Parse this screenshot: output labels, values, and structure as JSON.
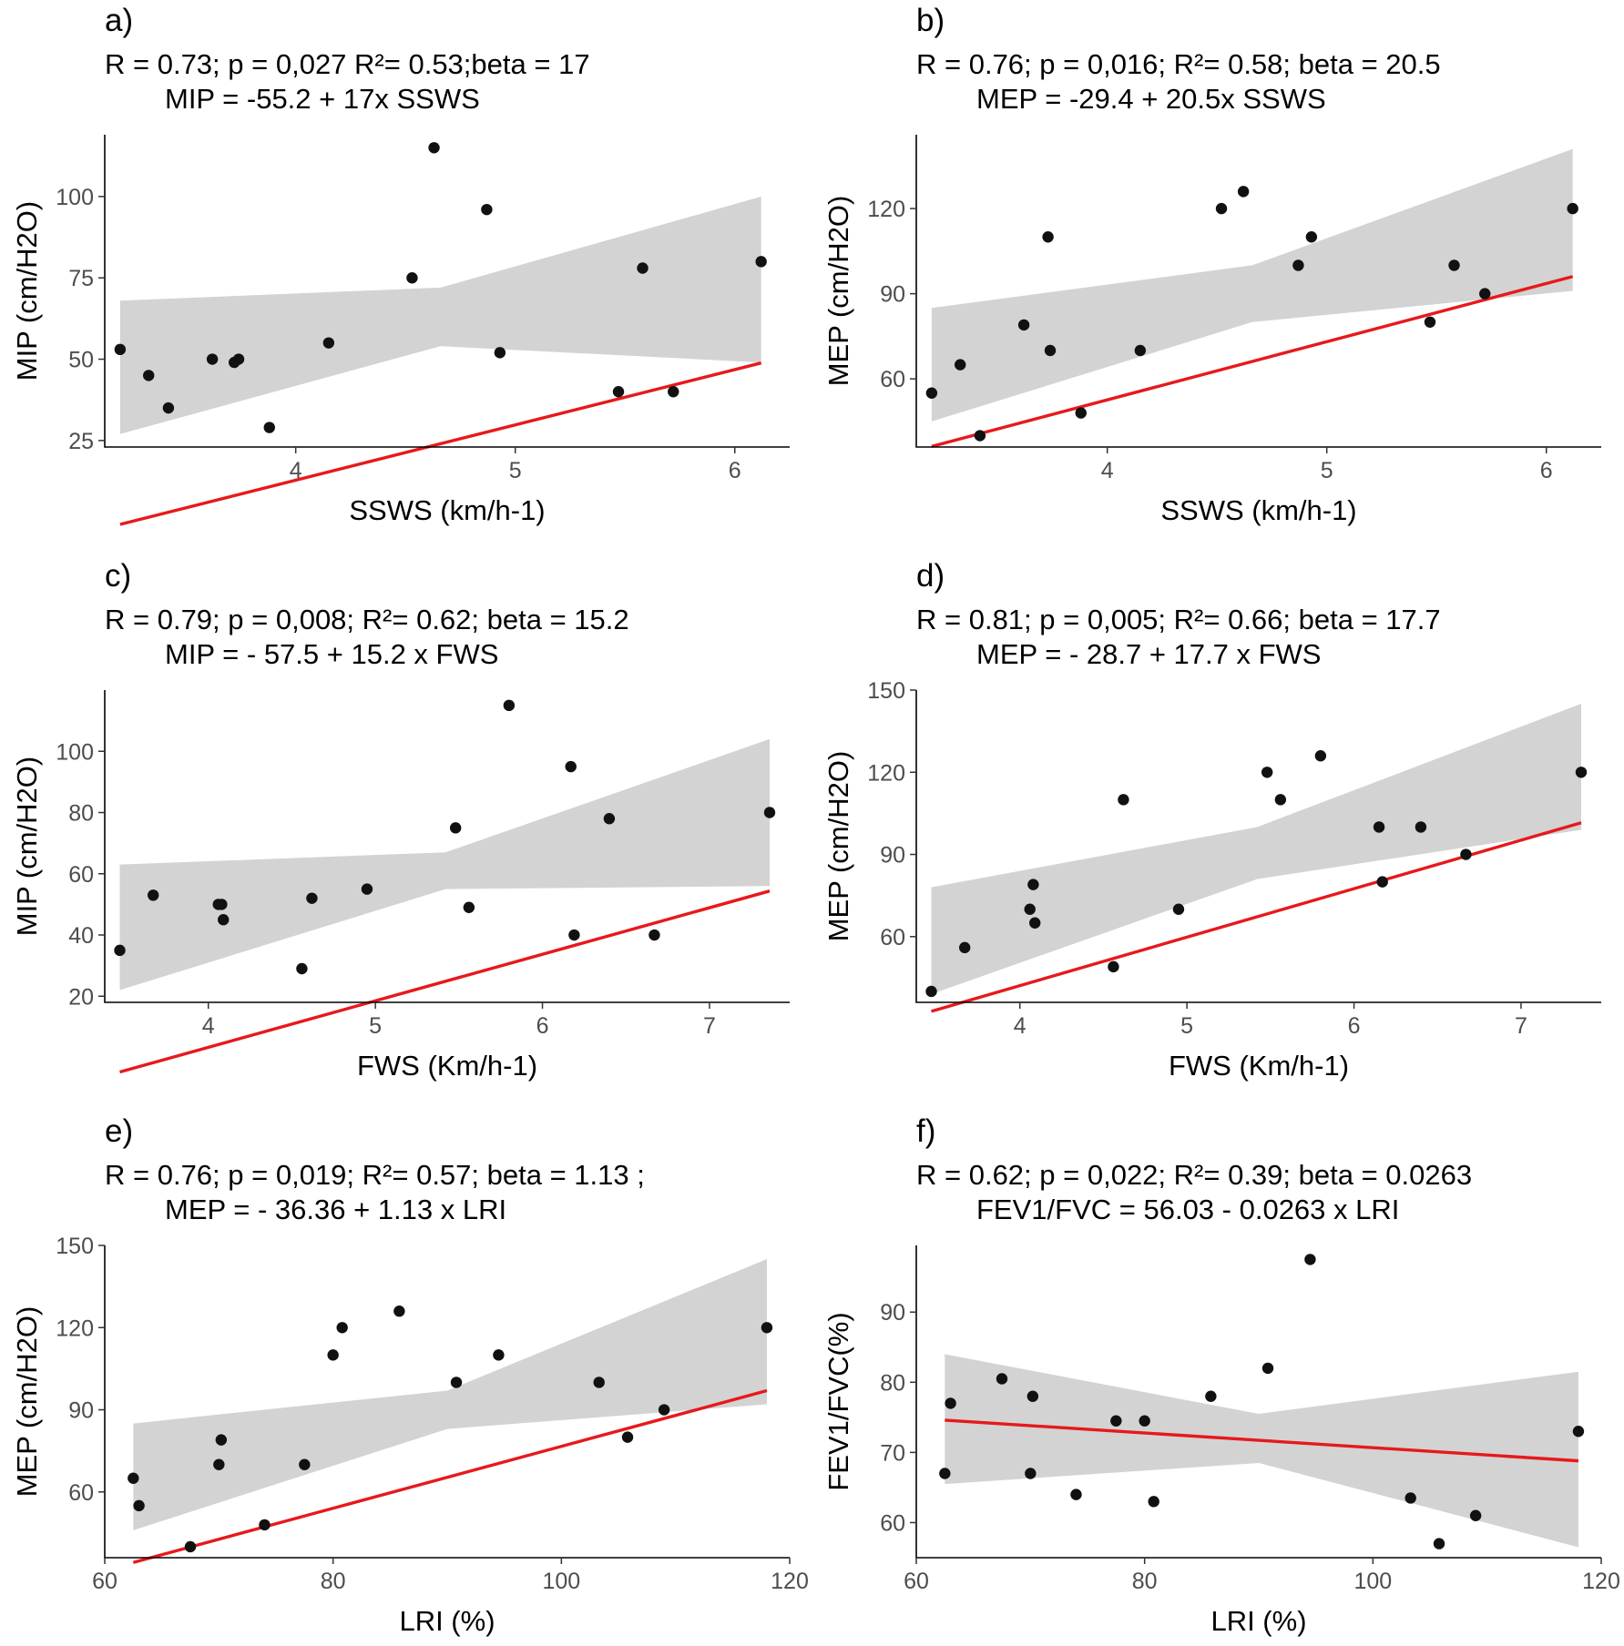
{
  "chart_data": [
    {
      "type": "scatter",
      "panel": "a)",
      "title": "R = 0.73; p = 0,027 R²= 0.53;beta = 17",
      "subtitle": "MIP = -55.2 + 17x SSWS",
      "xlabel": "SSWS (km/h-1)",
      "ylabel": "MIP (cm/H2O)",
      "xlim": [
        3.13,
        6.25
      ],
      "ylim": [
        23,
        119
      ],
      "xticks": [
        4,
        5,
        6
      ],
      "xtick_labels": [
        "4",
        "5",
        "6"
      ],
      "yticks": [
        25,
        50,
        75,
        100
      ],
      "ytick_labels": [
        "25",
        "50",
        "75",
        "100"
      ],
      "points": [
        [
          3.2,
          53
        ],
        [
          3.33,
          45
        ],
        [
          3.42,
          35
        ],
        [
          3.62,
          50
        ],
        [
          3.72,
          49
        ],
        [
          3.74,
          50
        ],
        [
          3.88,
          29
        ],
        [
          4.15,
          55
        ],
        [
          4.53,
          75
        ],
        [
          4.63,
          115
        ],
        [
          4.87,
          96
        ],
        [
          4.93,
          52
        ],
        [
          5.47,
          40
        ],
        [
          5.58,
          78
        ],
        [
          5.72,
          40
        ],
        [
          6.12,
          80
        ]
      ],
      "fit": {
        "intercept": -55.2,
        "slope": 17,
        "x_range": [
          3.2,
          6.12
        ]
      },
      "ci": {
        "x": [
          3.2,
          4.66,
          6.12
        ],
        "lower": [
          27,
          54,
          49
        ],
        "upper": [
          68,
          72,
          100
        ]
      }
    },
    {
      "type": "scatter",
      "panel": "b)",
      "title": "R = 0.76; p = 0,016; R²= 0.58; beta = 20.5",
      "subtitle": "MEP = -29.4 + 20.5x SSWS",
      "xlabel": "SSWS (km/h-1)",
      "ylabel": "MEP (cm/H2O)",
      "xlim": [
        3.13,
        6.25
      ],
      "ylim": [
        36,
        146
      ],
      "xticks": [
        4,
        5,
        6
      ],
      "xtick_labels": [
        "4",
        "5",
        "6"
      ],
      "yticks": [
        60,
        90,
        120
      ],
      "ytick_labels": [
        "60",
        "90",
        "120"
      ],
      "points": [
        [
          3.2,
          55
        ],
        [
          3.33,
          65
        ],
        [
          3.42,
          40
        ],
        [
          3.62,
          79
        ],
        [
          3.73,
          110
        ],
        [
          3.74,
          70
        ],
        [
          3.88,
          48
        ],
        [
          4.15,
          70
        ],
        [
          4.52,
          120
        ],
        [
          4.62,
          126
        ],
        [
          4.87,
          100
        ],
        [
          4.93,
          110
        ],
        [
          5.47,
          80
        ],
        [
          5.58,
          100
        ],
        [
          5.72,
          90
        ],
        [
          6.12,
          120
        ]
      ],
      "fit": {
        "intercept": -29.4,
        "slope": 20.5,
        "x_range": [
          3.2,
          6.12
        ]
      },
      "ci": {
        "x": [
          3.2,
          4.66,
          6.12
        ],
        "lower": [
          45,
          80,
          91
        ],
        "upper": [
          85,
          100,
          141
        ]
      }
    },
    {
      "type": "scatter",
      "panel": "c)",
      "title": "R = 0.79; p = 0,008; R²= 0.62; beta = 15.2",
      "subtitle": "MIP = - 57.5 + 15.2 x FWS",
      "xlabel": "FWS (Km/h-1)",
      "ylabel": "MIP (cm/H2O)",
      "xlim": [
        3.38,
        7.48
      ],
      "ylim": [
        18,
        120
      ],
      "xticks": [
        4,
        5,
        6,
        7
      ],
      "xtick_labels": [
        "4",
        "5",
        "6",
        "7"
      ],
      "yticks": [
        20,
        40,
        60,
        80,
        100
      ],
      "ytick_labels": [
        "20",
        "40",
        "60",
        "80",
        "100"
      ],
      "points": [
        [
          3.47,
          35
        ],
        [
          3.67,
          53
        ],
        [
          4.06,
          50
        ],
        [
          4.08,
          50
        ],
        [
          4.09,
          45
        ],
        [
          4.56,
          29
        ],
        [
          4.62,
          52
        ],
        [
          4.95,
          55
        ],
        [
          5.48,
          75
        ],
        [
          5.56,
          49
        ],
        [
          5.8,
          115
        ],
        [
          6.17,
          95
        ],
        [
          6.19,
          40
        ],
        [
          6.4,
          78
        ],
        [
          6.67,
          40
        ],
        [
          7.36,
          80
        ]
      ],
      "fit": {
        "intercept": -57.5,
        "slope": 15.2,
        "x_range": [
          3.47,
          7.36
        ]
      },
      "ci": {
        "x": [
          3.47,
          5.42,
          7.36
        ],
        "lower": [
          22,
          55,
          56
        ],
        "upper": [
          63,
          67,
          104
        ]
      }
    },
    {
      "type": "scatter",
      "panel": "d)",
      "title": "R = 0.81; p = 0,005; R²= 0.66; beta = 17.7",
      "subtitle": "MEP = - 28.7 + 17.7 x FWS",
      "xlabel": "FWS (Km/h-1)",
      "ylabel": "MEP (cm/H2O)",
      "xlim": [
        3.38,
        7.48
      ],
      "ylim": [
        36,
        150
      ],
      "xticks": [
        4,
        5,
        6,
        7
      ],
      "xtick_labels": [
        "4",
        "5",
        "6",
        "7"
      ],
      "yticks": [
        60,
        90,
        120,
        150
      ],
      "ytick_labels": [
        "60",
        "90",
        "120",
        "150"
      ],
      "points": [
        [
          3.47,
          40
        ],
        [
          3.67,
          56
        ],
        [
          4.06,
          70
        ],
        [
          4.08,
          79
        ],
        [
          4.09,
          65
        ],
        [
          4.56,
          49
        ],
        [
          4.62,
          110
        ],
        [
          4.95,
          70
        ],
        [
          5.48,
          120
        ],
        [
          5.56,
          110
        ],
        [
          5.8,
          126
        ],
        [
          6.15,
          100
        ],
        [
          6.17,
          80
        ],
        [
          6.4,
          100
        ],
        [
          6.67,
          90
        ],
        [
          7.36,
          120
        ]
      ],
      "fit": {
        "intercept": -28.7,
        "slope": 17.7,
        "x_range": [
          3.47,
          7.36
        ]
      },
      "ci": {
        "x": [
          3.47,
          5.42,
          7.36
        ],
        "lower": [
          39,
          81,
          99
        ],
        "upper": [
          78,
          100,
          145
        ]
      }
    },
    {
      "type": "scatter",
      "panel": "e)",
      "title": "R = 0.76; p = 0,019; R²= 0.57; beta = 1.13 ;",
      "subtitle": "MEP = - 36.36 + 1.13 x LRI",
      "xlabel": "LRI (%)",
      "ylabel": "MEP (cm/H2O)",
      "xlim": [
        60,
        120
      ],
      "ylim": [
        36,
        150
      ],
      "xticks": [
        60,
        80,
        100,
        120
      ],
      "xtick_labels": [
        "60",
        "80",
        "100",
        "120"
      ],
      "yticks": [
        60,
        90,
        120,
        150
      ],
      "ytick_labels": [
        "60",
        "90",
        "120",
        "150"
      ],
      "points": [
        [
          62.5,
          65
        ],
        [
          63,
          55
        ],
        [
          67.5,
          40
        ],
        [
          70,
          70
        ],
        [
          70.2,
          79
        ],
        [
          74,
          48
        ],
        [
          77.5,
          70
        ],
        [
          80,
          110
        ],
        [
          80.8,
          120
        ],
        [
          85.8,
          126
        ],
        [
          90.8,
          100
        ],
        [
          94.5,
          110
        ],
        [
          103.3,
          100
        ],
        [
          105.8,
          80
        ],
        [
          109,
          90
        ],
        [
          118,
          120
        ]
      ],
      "fit": {
        "intercept": -36.36,
        "slope": 1.13,
        "x_range": [
          62.5,
          118
        ]
      },
      "ci": {
        "x": [
          62.5,
          90,
          118
        ],
        "lower": [
          46,
          83,
          92
        ],
        "upper": [
          85,
          97,
          145
        ]
      }
    },
    {
      "type": "scatter",
      "panel": "f)",
      "title": "R = 0.62; p = 0,022; R²= 0.39; beta = 0.0263",
      "subtitle": "FEV1/FVC = 56.03 - 0.0263 x LRI",
      "xlabel": "LRI (%)",
      "ylabel": "FEV1/FVC(%)",
      "xlim": [
        60,
        120
      ],
      "ylim": [
        55,
        99.5
      ],
      "xticks": [
        60,
        80,
        100,
        120
      ],
      "xtick_labels": [
        "60",
        "80",
        "100",
        "120"
      ],
      "yticks": [
        60,
        70,
        80,
        90
      ],
      "ytick_labels": [
        "60",
        "70",
        "80",
        "90"
      ],
      "points": [
        [
          62.5,
          67
        ],
        [
          63,
          77
        ],
        [
          67.5,
          80.5
        ],
        [
          70,
          67
        ],
        [
          70.2,
          78
        ],
        [
          74,
          64
        ],
        [
          77.5,
          74.5
        ],
        [
          80,
          74.5
        ],
        [
          80.8,
          63
        ],
        [
          85.8,
          78
        ],
        [
          90.8,
          82
        ],
        [
          94.5,
          97.5
        ],
        [
          103.3,
          63.5
        ],
        [
          105.8,
          57
        ],
        [
          109,
          61
        ],
        [
          118,
          73
        ]
      ],
      "fit": {
        "x_range": [
          62.5,
          118
        ],
        "y_range": [
          74.6,
          68.8
        ]
      },
      "ci": {
        "x": [
          62.5,
          90,
          118
        ],
        "lower": [
          65.5,
          68.5,
          56.5
        ],
        "upper": [
          84,
          75.5,
          81.5
        ]
      }
    }
  ]
}
